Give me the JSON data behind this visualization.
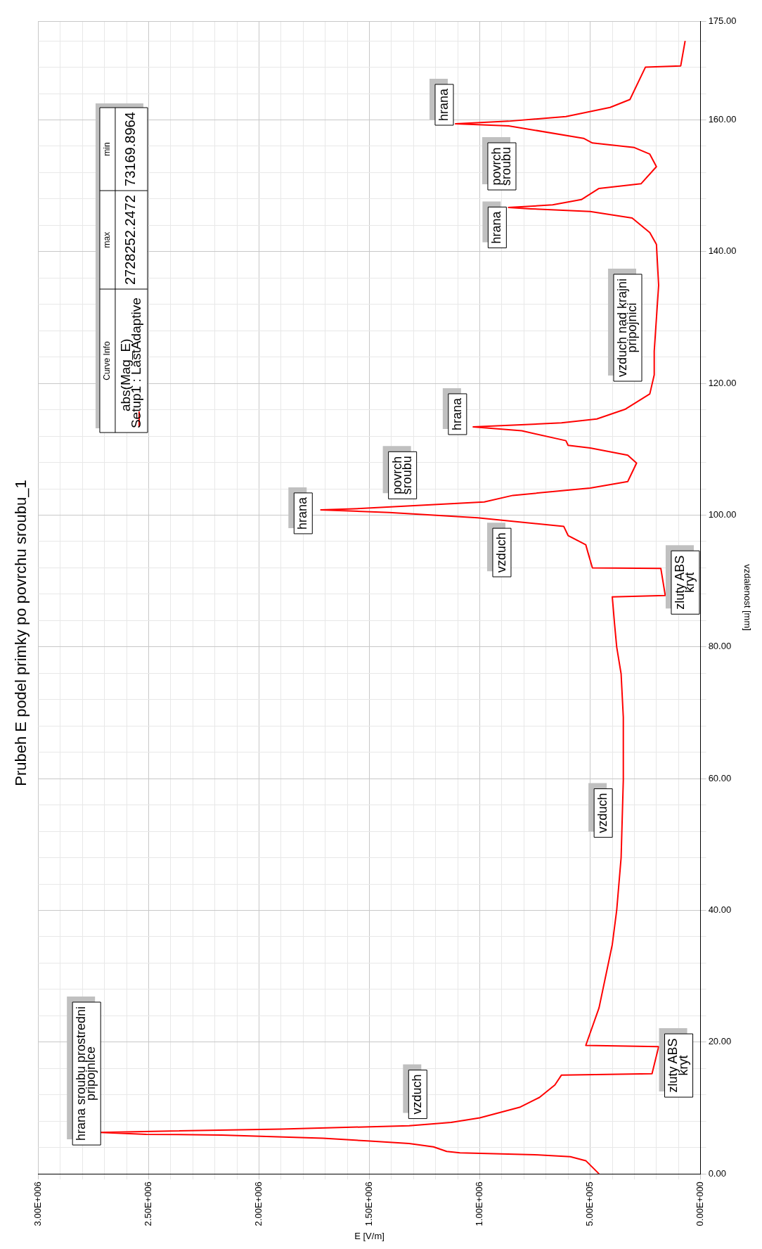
{
  "chart_data": {
    "type": "line",
    "title": "Prubeh E podel primky po povrchu sroubu_1",
    "xlabel": "E [V/m]",
    "ylabel": "vzdalenost [mm]",
    "x": [
      460000,
      520000,
      590000,
      750000,
      1090000,
      1150000,
      1210000,
      1320000,
      1510000,
      1710000,
      2170000,
      2510000,
      2720000,
      2400000,
      1900000,
      1320000,
      1130000,
      1000000,
      820000,
      730000,
      660000,
      630000,
      220000,
      190000,
      520000,
      460000,
      400000,
      380000,
      360000,
      350000,
      350000,
      360000,
      380000,
      390000,
      400000,
      160000,
      180000,
      490000,
      510000,
      520000,
      600000,
      620000,
      1010000,
      1410000,
      1720000,
      1540000,
      980000,
      850000,
      500000,
      330000,
      290000,
      330000,
      500000,
      600000,
      610000,
      810000,
      1030000,
      630000,
      470000,
      340000,
      230000,
      210000,
      210000,
      190000,
      200000,
      230000,
      310000,
      500000,
      770000,
      870000,
      670000,
      540000,
      460000,
      270000,
      200000,
      230000,
      300000,
      490000,
      530000,
      870000,
      1110000,
      870000,
      610000,
      410000,
      320000,
      250000,
      90000,
      70000
    ],
    "series": [
      {
        "name": "abs(Mag_E)\nSetup1 : LastAdaptive",
        "color": "#ff0000",
        "values": [
          0,
          2.0,
          2.6,
          2.9,
          3.2,
          3.4,
          4.1,
          4.6,
          5.0,
          5.4,
          5.9,
          6.0,
          6.3,
          6.5,
          6.8,
          7.3,
          7.8,
          8.5,
          10.1,
          11.6,
          13.5,
          15.0,
          15.2,
          19.3,
          19.5,
          25.2,
          34.8,
          40.0,
          48,
          59.8,
          69.3,
          75.9,
          80,
          83.6,
          87.6,
          87.8,
          91.9,
          92.0,
          94.3,
          95.5,
          96.9,
          98.3,
          99.6,
          100.4,
          100.8,
          101.0,
          102.0,
          103.0,
          104.1,
          105.1,
          107.9,
          109.1,
          110.2,
          110.6,
          111.3,
          112.8,
          113.4,
          114.0,
          114.6,
          116.1,
          118.4,
          121.3,
          124.9,
          134.9,
          141.1,
          142.9,
          145.1,
          146.1,
          146.5,
          146.7,
          147.1,
          147.9,
          149.6,
          150.3,
          152.9,
          154.8,
          155.8,
          156.5,
          157.2,
          159.1,
          159.4,
          159.8,
          160.5,
          161.9,
          163.1,
          168.0,
          168.2,
          172.0
        ]
      }
    ],
    "ylim": [
      0,
      175
    ],
    "yticks": [
      {
        "value": 0,
        "label": "0.00"
      },
      {
        "value": 4,
        "label": null
      },
      {
        "value": 8,
        "label": null
      },
      {
        "value": 12,
        "label": null
      },
      {
        "value": 16,
        "label": null
      },
      {
        "value": 20,
        "label": "20.00"
      },
      {
        "value": 24,
        "label": null
      },
      {
        "value": 28,
        "label": null
      },
      {
        "value": 32,
        "label": null
      },
      {
        "value": 36,
        "label": null
      },
      {
        "value": 40,
        "label": "40.00"
      },
      {
        "value": 44,
        "label": null
      },
      {
        "value": 48,
        "label": null
      },
      {
        "value": 52,
        "label": null
      },
      {
        "value": 56,
        "label": null
      },
      {
        "value": 60,
        "label": "60.00"
      },
      {
        "value": 64,
        "label": null
      },
      {
        "value": 68,
        "label": null
      },
      {
        "value": 72,
        "label": null
      },
      {
        "value": 76,
        "label": null
      },
      {
        "value": 80,
        "label": "80.00"
      },
      {
        "value": 84,
        "label": null
      },
      {
        "value": 88,
        "label": null
      },
      {
        "value": 92,
        "label": null
      },
      {
        "value": 96,
        "label": null
      },
      {
        "value": 100,
        "label": "100.00"
      },
      {
        "value": 104,
        "label": null
      },
      {
        "value": 108,
        "label": null
      },
      {
        "value": 112,
        "label": null
      },
      {
        "value": 116,
        "label": null
      },
      {
        "value": 120,
        "label": "120.00"
      },
      {
        "value": 124,
        "label": null
      },
      {
        "value": 128,
        "label": null
      },
      {
        "value": 132,
        "label": null
      },
      {
        "value": 136,
        "label": null
      },
      {
        "value": 140,
        "label": "140.00"
      },
      {
        "value": 144,
        "label": null
      },
      {
        "value": 148,
        "label": null
      },
      {
        "value": 152,
        "label": null
      },
      {
        "value": 156,
        "label": null
      },
      {
        "value": 160,
        "label": "160.00"
      },
      {
        "value": 164,
        "label": null
      },
      {
        "value": 168,
        "label": null
      },
      {
        "value": 172,
        "label": null
      },
      {
        "value": 175,
        "label": "175.00"
      }
    ],
    "xlim": [
      3000000,
      0
    ],
    "xticks": [
      {
        "value": 0,
        "label": "0.00E+000"
      },
      {
        "value": 100000,
        "label": null
      },
      {
        "value": 200000,
        "label": null
      },
      {
        "value": 300000,
        "label": null
      },
      {
        "value": 400000,
        "label": null
      },
      {
        "value": 500000,
        "label": "5.00E+005"
      },
      {
        "value": 600000,
        "label": null
      },
      {
        "value": 700000,
        "label": null
      },
      {
        "value": 800000,
        "label": null
      },
      {
        "value": 900000,
        "label": null
      },
      {
        "value": 1000000,
        "label": "1.00E+006"
      },
      {
        "value": 1100000,
        "label": null
      },
      {
        "value": 1200000,
        "label": null
      },
      {
        "value": 1300000,
        "label": null
      },
      {
        "value": 1400000,
        "label": null
      },
      {
        "value": 1500000,
        "label": "1.50E+006"
      },
      {
        "value": 1600000,
        "label": null
      },
      {
        "value": 1700000,
        "label": null
      },
      {
        "value": 1800000,
        "label": null
      },
      {
        "value": 1900000,
        "label": null
      },
      {
        "value": 2000000,
        "label": "2.00E+006"
      },
      {
        "value": 2100000,
        "label": null
      },
      {
        "value": 2200000,
        "label": null
      },
      {
        "value": 2300000,
        "label": null
      },
      {
        "value": 2400000,
        "label": null
      },
      {
        "value": 2500000,
        "label": "2.50E+006"
      },
      {
        "value": 2600000,
        "label": null
      },
      {
        "value": 2700000,
        "label": null
      },
      {
        "value": 2800000,
        "label": null
      },
      {
        "value": 2900000,
        "label": null
      },
      {
        "value": 3000000,
        "label": "3.00E+006"
      }
    ],
    "grid": true,
    "legend": "top left",
    "marker": "none",
    "line_style": "solid",
    "annotations": [
      "Curve Info",
      "max",
      "min",
      "2728252.2472",
      "73169.8964",
      "hrana sroubu prostredni\npripojnice",
      "vzduch",
      "zluty ABS\nkryt",
      "vzduch",
      "zluty ABS\nkryt",
      "vzduch",
      "hrana",
      "povrch\nsroubu",
      "hrana",
      "vzduch nad krajni\npripojnici",
      "hrana",
      "povrch\nsroubu",
      "hrana"
    ]
  }
}
